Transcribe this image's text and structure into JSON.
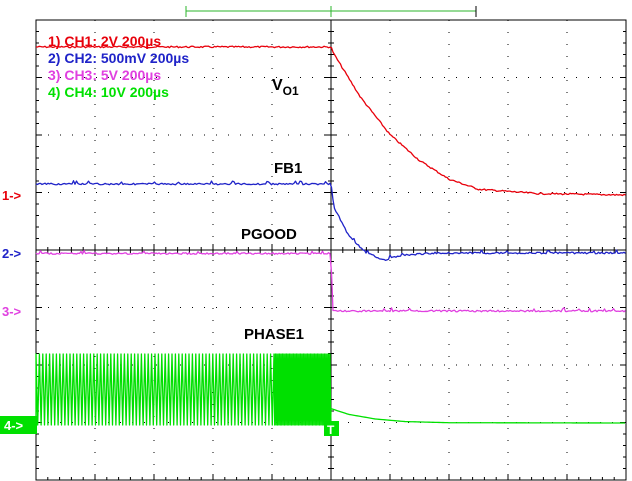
{
  "chart_data": {
    "type": "line",
    "title": "",
    "xlabel": "",
    "ylabel": "",
    "grid": "dotted 10x8 divisions",
    "x_unit": "µs",
    "x_range": [
      -1000,
      1000
    ],
    "trigger_time": 0,
    "legend": [
      {
        "label": "1) CH1: 2V 200µs",
        "color": "#e8000b"
      },
      {
        "label": "2) CH2: 500mV 200µs",
        "color": "#1f23c8"
      },
      {
        "label": "3) CH3: 5V 200µs",
        "color": "#e040e0"
      },
      {
        "label": "4) CH4: 10V 200µs",
        "color": "#00e000"
      }
    ],
    "annotations": {
      "vo1_main": "V",
      "vo1_sub": "O1",
      "fb1": "FB1",
      "pgood": "PGOOD",
      "phase1": "PHASE1"
    },
    "channel_markers": [
      "1->",
      "2->",
      "3->",
      "4->"
    ],
    "trigger_marker": "T",
    "series": [
      {
        "channel": 1,
        "name": "VO1",
        "color": "#e8000b",
        "volts_per_div": 2,
        "points": [
          [
            -1000,
            5.15
          ],
          [
            0,
            5.15
          ],
          [
            10,
            4.9
          ],
          [
            100,
            3.4
          ],
          [
            200,
            2.1
          ],
          [
            300,
            1.2
          ],
          [
            400,
            0.55
          ],
          [
            500,
            0.2
          ],
          [
            700,
            0.05
          ],
          [
            1000,
            0.0
          ]
        ]
      },
      {
        "channel": 2,
        "name": "FB1",
        "color": "#1f23c8",
        "volts_per_div": 0.5,
        "points": [
          [
            -1000,
            0.6
          ],
          [
            0,
            0.6
          ],
          [
            10,
            0.4
          ],
          [
            60,
            0.15
          ],
          [
            120,
            0.0
          ],
          [
            180,
            -0.06
          ],
          [
            240,
            -0.02
          ],
          [
            350,
            0.0
          ],
          [
            1000,
            0.0
          ]
        ]
      },
      {
        "channel": 3,
        "name": "PGOOD",
        "color": "#e040e0",
        "volts_per_div": 5,
        "points": [
          [
            -1000,
            5.0
          ],
          [
            0,
            5.0
          ],
          [
            5,
            0.0
          ],
          [
            1000,
            0.0
          ]
        ]
      },
      {
        "channel": 4,
        "name": "PHASE1",
        "color": "#00e000",
        "volts_per_div": 10,
        "switching": {
          "from": -1000,
          "to": 0,
          "high": 12,
          "low": 0
        },
        "points": [
          [
            0,
            2.5
          ],
          [
            60,
            1.5
          ],
          [
            150,
            0.7
          ],
          [
            250,
            0.25
          ],
          [
            400,
            0.05
          ],
          [
            1000,
            0.0
          ]
        ]
      }
    ]
  }
}
